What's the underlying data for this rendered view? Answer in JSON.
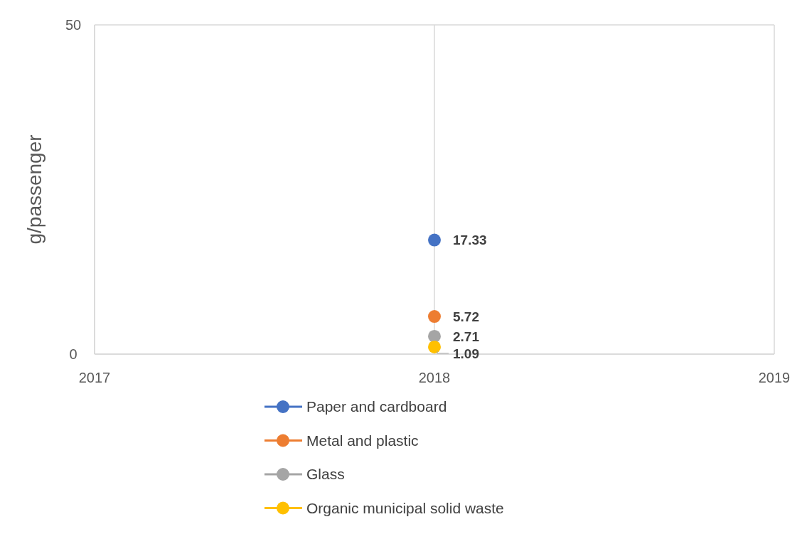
{
  "chart_data": {
    "type": "line",
    "ylabel": "g/passenger",
    "x": [
      2018
    ],
    "xlim": [
      2017,
      2019
    ],
    "xticks": [
      2017,
      2018,
      2019
    ],
    "ylim": [
      0,
      50
    ],
    "yticks": [
      0,
      50
    ],
    "grid": true,
    "legend": "bottom",
    "marker": "circle",
    "data_labels": true,
    "series": [
      {
        "name": "Paper and cardboard",
        "color": "#4472c4",
        "values": [
          17.33
        ]
      },
      {
        "name": "Metal and plastic",
        "color": "#ed7d31",
        "values": [
          5.72
        ]
      },
      {
        "name": "Glass",
        "color": "#a5a5a5",
        "values": [
          2.71
        ]
      },
      {
        "name": "Organic municipal solid waste",
        "color": "#ffc000",
        "values": [
          1.09
        ]
      }
    ]
  }
}
